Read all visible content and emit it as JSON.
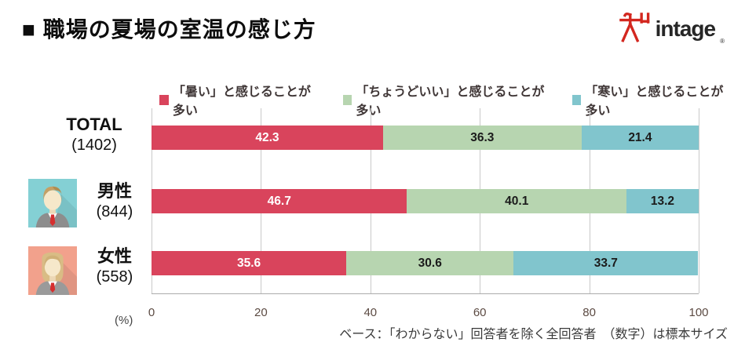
{
  "title": "■ 職場の夏場の室温の感じ方",
  "logo": {
    "text": "intage",
    "registered": "®"
  },
  "legend": [
    {
      "label": "「暑い」と感じることが多い",
      "color": "#d9445c"
    },
    {
      "label": "「ちょうどいい」と感じることが多い",
      "color": "#b7d5b0"
    },
    {
      "label": "「寒い」と感じることが多い",
      "color": "#81c5cd"
    }
  ],
  "rows": [
    {
      "label": "TOTAL",
      "count": "(1402)"
    },
    {
      "label": "男性",
      "count": "(844)"
    },
    {
      "label": "女性",
      "count": "(558)"
    }
  ],
  "chart_data": {
    "type": "bar",
    "stacked": true,
    "orientation": "horizontal",
    "title": "職場の夏場の室温の感じ方",
    "categories": [
      "TOTAL (1402)",
      "男性 (844)",
      "女性 (558)"
    ],
    "series": [
      {
        "name": "「暑い」と感じることが多い",
        "color": "#d9445c",
        "label_color": "#ffffff",
        "values": [
          42.3,
          46.7,
          35.6
        ]
      },
      {
        "name": "「ちょうどいい」と感じることが多い",
        "color": "#b7d5b0",
        "label_color": "#1b1b1b",
        "values": [
          36.3,
          40.1,
          30.6
        ]
      },
      {
        "name": "「寒い」と感じることが多い",
        "color": "#81c5cd",
        "label_color": "#1b1b1b",
        "values": [
          21.4,
          13.2,
          33.7
        ]
      }
    ],
    "xlim": [
      0,
      100
    ],
    "x_ticks": [
      0,
      20,
      40,
      60,
      80,
      100
    ],
    "x_unit": "(%)",
    "grid": true,
    "legend_position": "top"
  },
  "footer": "ベース：「わからない」回答者を除く全回答者　（数字）は標本サイズ"
}
